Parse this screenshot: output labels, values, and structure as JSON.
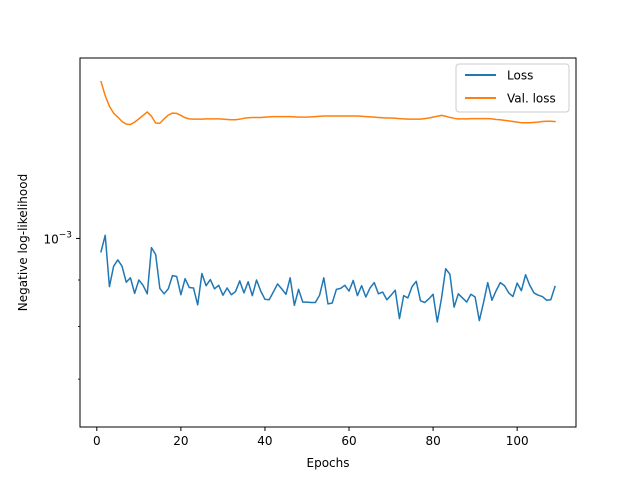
{
  "chart_data": {
    "type": "line",
    "title": "",
    "xlabel": "Epochs",
    "ylabel": "Negative log-likelihood",
    "yscale": "log",
    "xlim": [
      -4,
      114
    ],
    "ylim": [
      0.00062,
      0.00158
    ],
    "xticks": [
      0,
      20,
      40,
      60,
      80,
      100
    ],
    "yticks": [
      {
        "value": 0.001,
        "base": "10",
        "exp": "−3"
      }
    ],
    "grid": false,
    "legend": "top-right",
    "series": [
      {
        "name": "Loss",
        "color": "#1f77b4",
        "x": [
          1,
          2,
          3,
          4,
          5,
          6,
          7,
          8,
          9,
          10,
          11,
          12,
          13,
          14,
          15,
          16,
          17,
          18,
          19,
          20,
          21,
          22,
          23,
          24,
          25,
          26,
          27,
          28,
          29,
          30,
          31,
          32,
          33,
          34,
          35,
          36,
          37,
          38,
          39,
          40,
          41,
          42,
          43,
          44,
          45,
          46,
          47,
          48,
          49,
          50,
          51,
          52,
          53,
          54,
          55,
          56,
          57,
          58,
          59,
          60,
          61,
          62,
          63,
          64,
          65,
          66,
          67,
          68,
          69,
          70,
          71,
          72,
          73,
          74,
          75,
          76,
          77,
          78,
          79,
          80,
          81,
          82,
          83,
          84,
          85,
          86,
          87,
          88,
          89,
          90,
          91,
          92,
          93,
          94,
          95,
          96,
          97,
          98,
          99,
          100,
          101,
          102,
          103,
          104,
          105,
          106,
          107,
          108,
          109
        ],
        "y": [
          0.000967,
          0.001008,
          0.000885,
          0.000932,
          0.000947,
          0.000932,
          0.000895,
          0.000905,
          0.00087,
          0.0009,
          0.000888,
          0.000869,
          0.000977,
          0.00096,
          0.000881,
          0.000869,
          0.00088,
          0.00091,
          0.000908,
          0.000867,
          0.000903,
          0.000883,
          0.000882,
          0.000845,
          0.000915,
          0.000887,
          0.000901,
          0.00088,
          0.000888,
          0.000866,
          0.000882,
          0.000867,
          0.000874,
          0.000898,
          0.000871,
          0.000896,
          0.000865,
          0.0009,
          0.000875,
          0.000857,
          0.000856,
          0.000873,
          0.000891,
          0.00088,
          0.000868,
          0.000905,
          0.000844,
          0.000879,
          0.000851,
          0.000851,
          0.00085,
          0.00085,
          0.000866,
          0.000905,
          0.000847,
          0.000849,
          0.000879,
          0.000881,
          0.000888,
          0.000875,
          0.000899,
          0.000865,
          0.000887,
          0.000862,
          0.000882,
          0.000894,
          0.000869,
          0.000873,
          0.000856,
          0.000866,
          0.000877,
          0.000816,
          0.000865,
          0.00086,
          0.000885,
          0.000897,
          0.000854,
          0.00085,
          0.000858,
          0.000868,
          0.000809,
          0.000859,
          0.000926,
          0.000913,
          0.00084,
          0.000869,
          0.00086,
          0.000851,
          0.000868,
          0.000862,
          0.000812,
          0.00085,
          0.000894,
          0.000855,
          0.000876,
          0.000894,
          0.000887,
          0.000871,
          0.000863,
          0.000893,
          0.000876,
          0.000912,
          0.000888,
          0.000871,
          0.000866,
          0.000863,
          0.000855,
          0.000856,
          0.000885
        ]
      },
      {
        "name": "Val. loss",
        "color": "#ff7f0e",
        "x": [
          1,
          2,
          3,
          4,
          5,
          6,
          7,
          8,
          9,
          10,
          11,
          12,
          13,
          14,
          15,
          16,
          17,
          18,
          19,
          20,
          21,
          22,
          23,
          24,
          25,
          26,
          27,
          28,
          29,
          30,
          31,
          32,
          33,
          34,
          35,
          36,
          37,
          38,
          39,
          40,
          41,
          42,
          43,
          44,
          45,
          46,
          47,
          48,
          49,
          50,
          51,
          52,
          53,
          54,
          55,
          56,
          57,
          58,
          59,
          60,
          61,
          62,
          63,
          64,
          65,
          66,
          67,
          68,
          69,
          70,
          71,
          72,
          73,
          74,
          75,
          76,
          77,
          78,
          79,
          80,
          81,
          82,
          83,
          84,
          85,
          86,
          87,
          88,
          89,
          90,
          91,
          92,
          93,
          94,
          95,
          96,
          97,
          98,
          99,
          100,
          101,
          102,
          103,
          104,
          105,
          106,
          107,
          108,
          109
        ],
        "y": [
          0.001488,
          0.001436,
          0.001398,
          0.001374,
          0.00136,
          0.001345,
          0.001336,
          0.001335,
          0.001343,
          0.001354,
          0.001366,
          0.001378,
          0.001363,
          0.00134,
          0.001339,
          0.001354,
          0.001367,
          0.001374,
          0.001373,
          0.001366,
          0.001358,
          0.001354,
          0.001353,
          0.001353,
          0.001353,
          0.001354,
          0.001354,
          0.001354,
          0.001354,
          0.001353,
          0.001352,
          0.001351,
          0.001351,
          0.001353,
          0.001356,
          0.001358,
          0.001359,
          0.001359,
          0.001359,
          0.00136,
          0.001361,
          0.001362,
          0.001362,
          0.001362,
          0.001362,
          0.001362,
          0.001361,
          0.00136,
          0.00136,
          0.00136,
          0.001361,
          0.001362,
          0.001363,
          0.001364,
          0.001364,
          0.001364,
          0.001364,
          0.001364,
          0.001364,
          0.001364,
          0.001364,
          0.001364,
          0.001363,
          0.001362,
          0.001361,
          0.00136,
          0.001359,
          0.001358,
          0.001357,
          0.001357,
          0.001356,
          0.001355,
          0.001354,
          0.001353,
          0.001353,
          0.001353,
          0.001353,
          0.001355,
          0.001357,
          0.00136,
          0.001363,
          0.001366,
          0.001363,
          0.001359,
          0.001356,
          0.001354,
          0.001354,
          0.001354,
          0.001355,
          0.001355,
          0.001355,
          0.001355,
          0.001355,
          0.001354,
          0.001352,
          0.001351,
          0.001349,
          0.001347,
          0.001345,
          0.001343,
          0.001341,
          0.001341,
          0.001341,
          0.001342,
          0.001343,
          0.001345,
          0.001346,
          0.001346,
          0.001345
        ]
      }
    ]
  }
}
